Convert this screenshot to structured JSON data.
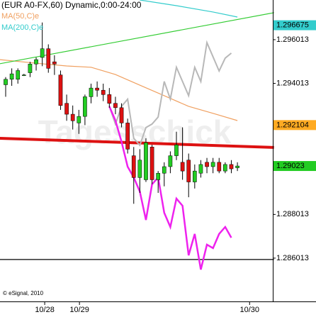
{
  "chart_data": {
    "type": "candlestick",
    "title": "(EUR A0-FX,60) Dynamic,0:00-24:00",
    "credit": "© eSignal, 2010",
    "watermark": "Tagesschick",
    "up_color": "#22cc22",
    "down_color": "#dd1111",
    "x": [
      0,
      1,
      2,
      3,
      4,
      5,
      6,
      7,
      8,
      9,
      10,
      11,
      12,
      13,
      14,
      15,
      16,
      17,
      18,
      19,
      20,
      21,
      22,
      23,
      24,
      25,
      26,
      27,
      28,
      29,
      30,
      31,
      32,
      33,
      34,
      35,
      36,
      37,
      38
    ],
    "open": [
      1.29395,
      1.2942,
      1.2942,
      1.2944,
      1.2945,
      1.2949,
      1.2952,
      1.2956,
      1.295,
      1.2944,
      1.2931,
      1.2926,
      1.2922,
      1.2925,
      1.2934,
      1.2938,
      1.2937,
      1.2935,
      1.2931,
      1.2929,
      1.2922,
      1.2907,
      1.2897,
      1.2896,
      1.2911,
      1.2896,
      1.2899,
      1.2902,
      1.2907,
      1.2904,
      1.2905,
      1.2895,
      1.2899,
      1.2904,
      1.2902,
      1.2904,
      1.29,
      1.2903,
      1.29015
    ],
    "high": [
      1.2943,
      1.2947,
      1.2947,
      1.29445,
      1.295,
      1.2952,
      1.2968,
      1.2958,
      1.2953,
      1.2946,
      1.2935,
      1.293,
      1.2928,
      1.2935,
      1.294,
      1.2941,
      1.294,
      1.2938,
      1.2934,
      1.2931,
      1.2924,
      1.2911,
      1.291,
      1.2915,
      1.2912,
      1.29,
      1.2904,
      1.2909,
      1.2918,
      1.292,
      1.2908,
      1.2903,
      1.2905,
      1.2906,
      1.2906,
      1.2906,
      1.2904,
      1.2905,
      1.2904
    ],
    "low": [
      1.2934,
      1.2939,
      1.294,
      1.29435,
      1.2943,
      1.2946,
      1.2948,
      1.2945,
      1.2944,
      1.2928,
      1.2923,
      1.2919,
      1.2917,
      1.2921,
      1.2931,
      1.2934,
      1.2932,
      1.2929,
      1.2926,
      1.292,
      1.2908,
      1.2885,
      1.289,
      1.2895,
      1.2894,
      1.289,
      1.2893,
      1.2899,
      1.2905,
      1.2896,
      1.2888,
      1.2892,
      1.2897,
      1.2899,
      1.2899,
      1.2899,
      1.2899,
      1.2899,
      1.29
    ],
    "close": [
      1.2942,
      1.29445,
      1.2946,
      1.2944,
      1.2949,
      1.2951,
      1.2956,
      1.2947,
      1.2949,
      1.293,
      1.2926,
      1.2923,
      1.2925,
      1.2934,
      1.2938,
      1.2937,
      1.2935,
      1.2931,
      1.2929,
      1.2922,
      1.291,
      1.2897,
      1.2905,
      1.2913,
      1.2896,
      1.2899,
      1.2902,
      1.2907,
      1.2912,
      1.29,
      1.2895,
      1.29,
      1.2903,
      1.2902,
      1.2904,
      1.29,
      1.2903,
      1.2901,
      1.29023
    ],
    "series": [
      {
        "name": "MA(50,C)e",
        "color": "#f0a060",
        "x": [
          -1,
          6,
          10,
          14,
          18,
          22,
          26,
          30,
          34,
          38
        ],
        "values": [
          1.2951,
          1.29491,
          1.29481,
          1.29475,
          1.29442,
          1.29393,
          1.29345,
          1.29296,
          1.29264,
          1.29231
        ]
      },
      {
        "name": "MA(200,C)e",
        "color": "#33cccc",
        "x": [
          22,
          28,
          34,
          38
        ],
        "values": [
          1.29783,
          1.29757,
          1.29728,
          1.29705
        ]
      },
      {
        "color": "#33cc33",
        "x": [
          -1,
          44
        ],
        "values": [
          1.29491,
          1.29725
        ]
      },
      {
        "color": "#dd1111",
        "width": 4,
        "x": [
          -1,
          44
        ],
        "values": [
          1.2915,
          1.29108
        ]
      },
      {
        "color": "#000000",
        "x": [
          -1,
          44
        ],
        "values": [
          1.28595,
          1.28595
        ]
      },
      {
        "color": "#b8b8b8",
        "width": 2,
        "x": [
          17,
          18,
          19,
          20,
          21,
          22,
          23,
          24,
          25,
          26,
          27,
          28,
          29,
          30,
          31,
          32,
          33,
          34,
          35,
          36,
          37
        ],
        "values": [
          1.29296,
          1.29215,
          1.29296,
          1.29329,
          1.2915,
          1.29118,
          1.29199,
          1.29215,
          1.29247,
          1.2941,
          1.29329,
          1.29475,
          1.2941,
          1.29345,
          1.29475,
          1.2941,
          1.29588,
          1.29523,
          1.29458,
          1.29517,
          1.2954
        ]
      },
      {
        "color": "#ee22ee",
        "width": 2.5,
        "x": [
          17,
          18,
          19,
          20,
          21,
          22,
          23,
          24,
          25,
          26,
          27,
          28,
          29,
          30,
          31,
          32,
          33,
          34,
          35,
          36,
          37
        ],
        "values": [
          1.29296,
          1.29231,
          1.29134,
          1.2902,
          1.28971,
          1.28906,
          1.28776,
          1.28939,
          1.28971,
          1.28809,
          1.28744,
          1.28874,
          1.28841,
          1.28614,
          1.28712,
          1.28549,
          1.28663,
          1.28647,
          1.28712,
          1.28744,
          1.28695
        ]
      }
    ],
    "xlim": [
      -0.93,
      43.8
    ],
    "ylim": [
      1.28403,
      1.29783
    ],
    "xticks": [
      {
        "value": 6.4,
        "label": "10/28"
      },
      {
        "value": 12.1,
        "label": "10/29"
      },
      {
        "value": 40,
        "label": "10/30"
      }
    ],
    "yticks": [
      1.296013,
      1.294013,
      1.288013,
      1.286013
    ],
    "price_labels": [
      {
        "value": 1.296675,
        "color": "#33cccc"
      },
      {
        "value": 1.292104,
        "color": "#ffaa22"
      },
      {
        "value": 1.29023,
        "color": "#22cc22"
      }
    ]
  }
}
